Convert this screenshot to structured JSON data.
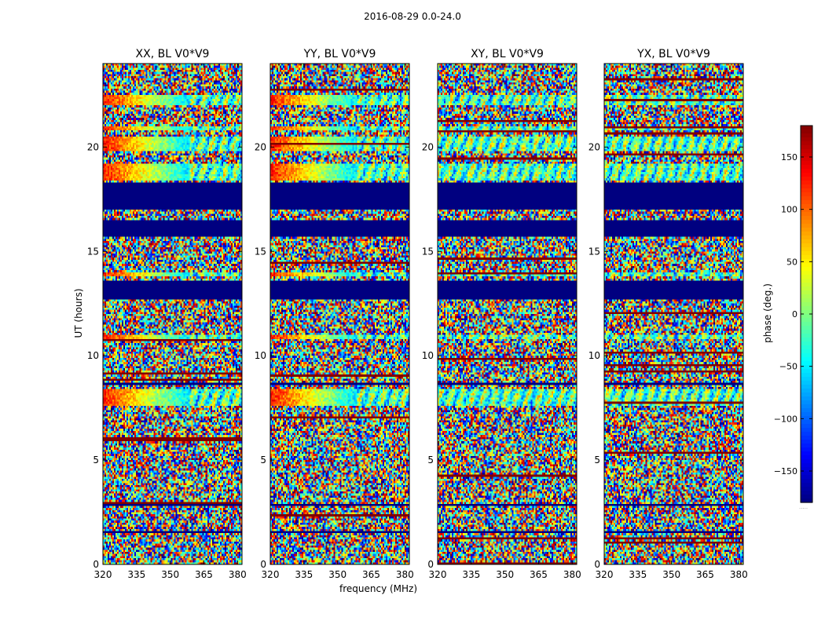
{
  "figure": {
    "suptitle": "2016-08-29 0.0-24.0",
    "xlabel": "frequency (MHz)",
    "ylabel": "UT (hours)",
    "colorbar_label": "phase (deg.)",
    "colorbar_note": "....."
  },
  "chart_data": {
    "type": "heatmap",
    "colormap": "jet",
    "xlim": [
      320,
      382
    ],
    "ylim": [
      0,
      24
    ],
    "clim": [
      -180,
      180
    ],
    "x_ticks": [
      320,
      335,
      350,
      365,
      380
    ],
    "y_ticks": [
      0,
      5,
      10,
      15,
      20
    ],
    "colorbar_ticks": [
      150,
      100,
      50,
      0,
      -50,
      -100,
      -150
    ],
    "panels": [
      {
        "title": "XX, BL V0*V9",
        "ytick_labels": [
          "0",
          "5",
          "10",
          "15",
          "20"
        ]
      },
      {
        "title": "YY, BL V0*V9",
        "ytick_labels": [
          "0",
          "5",
          "10",
          "15",
          "20"
        ]
      },
      {
        "title": "XY, BL V0*V9",
        "ytick_labels": [
          "0",
          "5",
          "10",
          "15",
          "20"
        ]
      },
      {
        "title": "YX, BL V0*V9",
        "ytick_labels": [
          "0",
          "5",
          "10",
          "15",
          "20"
        ]
      }
    ],
    "xtick_labels": [
      "320",
      "335",
      "350",
      "365",
      "380"
    ],
    "colorbar_tick_labels": [
      "150",
      "100",
      "50",
      "0",
      "−50",
      "−100",
      "−150"
    ],
    "bands": {
      "masked_hours": [
        [
          17.0,
          18.3
        ],
        [
          15.7,
          16.5
        ],
        [
          12.7,
          13.6
        ],
        [
          1.5,
          1.6
        ],
        [
          2.8,
          2.9
        ],
        [
          8.6,
          8.7
        ]
      ],
      "coherent_hours": [
        [
          22.0,
          22.5
        ],
        [
          20.8,
          21.0
        ],
        [
          19.8,
          20.5
        ],
        [
          18.4,
          19.2
        ],
        [
          13.8,
          14.0
        ],
        [
          10.8,
          11.0
        ],
        [
          7.6,
          8.4
        ]
      ]
    }
  }
}
